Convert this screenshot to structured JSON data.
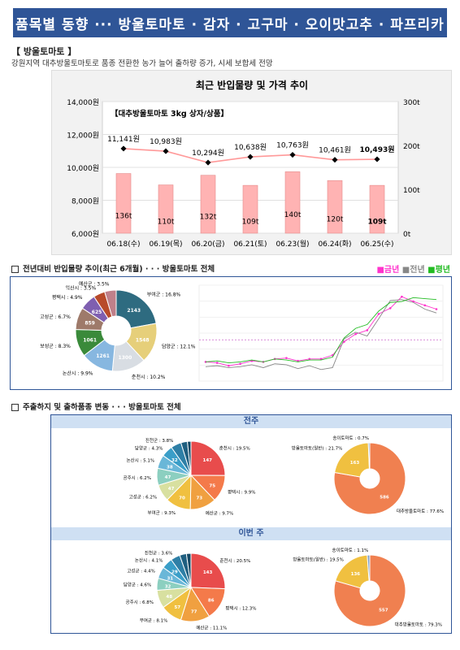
{
  "title": "품목별 동향 ··· 방울토마토 · 감자 · 고구마 · 오이맛고추 · 파프리카",
  "section1": {
    "heading": "【 방울토마토 】",
    "description": "강원지역 대추방울토마토로 품종 전환한 농가 늘어 출하량 증가, 시세 보합세 전망"
  },
  "chart_data": [
    {
      "type": "bar+line",
      "title": "최근 반입물량 및 가격 추이",
      "subtitle": "【대추방울토마토 3kg 상자/상품】",
      "categories": [
        "06.18(수)",
        "06.19(목)",
        "06.20(금)",
        "06.21(토)",
        "06.23(월)",
        "06.24(화)",
        "06.25(수)"
      ],
      "series": [
        {
          "name": "반입물량",
          "axis": "right",
          "unit": "t",
          "values": [
            136,
            110,
            132,
            109,
            140,
            120,
            109
          ],
          "labels": [
            "136t",
            "110t",
            "132t",
            "109t",
            "140t",
            "120t",
            "109t"
          ]
        },
        {
          "name": "가격",
          "axis": "left",
          "unit": "원",
          "values": [
            11141,
            10983,
            10294,
            10638,
            10763,
            10461,
            10493
          ],
          "labels": [
            "11,141원",
            "10,983원",
            "10,294원",
            "10,638원",
            "10,763원",
            "10,461원",
            "10,493원"
          ]
        }
      ],
      "y_left_ticks": [
        "14,000원",
        "12,000원",
        "10,000원",
        "8,000원",
        "6,000원"
      ],
      "y_left_range": [
        6000,
        14000
      ],
      "y_right_ticks": [
        "300t",
        "200t",
        "100t",
        "0t"
      ],
      "y_right_range": [
        0,
        300
      ],
      "colors": {
        "bar": "#ffb3b3",
        "bar_border": "#e58b8b",
        "line": "#ff9999",
        "marker": "#000000"
      }
    },
    {
      "type": "pie",
      "title": "전년대비 반입물량 추이(최근 6개월) · · · 방울토마토 전체",
      "slices": [
        {
          "label": "부여군 : 16.8%",
          "value": 2143,
          "color": "#2e6b80"
        },
        {
          "label": "담양군 : 12.1%",
          "value": 1548,
          "color": "#e6cf7a"
        },
        {
          "label": "춘천시 : 10.2%",
          "value": 1300,
          "color": "#d8dde3"
        },
        {
          "label": "논산시 : 9.9%",
          "value": 1261,
          "color": "#87b7e0"
        },
        {
          "label": "보성군 : 8.3%",
          "value": 1061,
          "color": "#3a8a3a"
        },
        {
          "label": "고성군 : 6.7%",
          "value": 859,
          "color": "#9e7a6a"
        },
        {
          "label": "평택시 : 4.9%",
          "value": 625,
          "color": "#7f5fb0"
        },
        {
          "label": "익산시 : 3.5%",
          "value": 446,
          "color": "#b84a2a"
        },
        {
          "label": "예산군 : 3.5%",
          "value": 446,
          "color": "#c0808a"
        }
      ]
    },
    {
      "type": "line",
      "title": "전년대비 반입물량 추이(최근 6개월)",
      "legend": [
        "금년",
        "전년",
        "평년"
      ],
      "series": [
        {
          "name": "금년",
          "color": "#ff33cc",
          "values": [
            40,
            38,
            32,
            36,
            42,
            40,
            46,
            48,
            42,
            46,
            46,
            54,
            82,
            98,
            106,
            140,
            152,
            176,
            166,
            158,
            150
          ]
        },
        {
          "name": "전년",
          "color": "#888888",
          "values": [
            30,
            32,
            28,
            30,
            34,
            28,
            36,
            34,
            26,
            32,
            24,
            28,
            88,
            102,
            94,
            130,
            168,
            170,
            164,
            150,
            142
          ]
        },
        {
          "name": "평년",
          "color": "#22bb22",
          "values": [
            40,
            42,
            38,
            40,
            44,
            40,
            46,
            44,
            40,
            44,
            44,
            50,
            90,
            110,
            118,
            146,
            164,
            166,
            174,
            172,
            170
          ]
        }
      ],
      "reference": 86
    },
    {
      "type": "pie",
      "title": "전주",
      "slices": [
        {
          "label": "춘천시 : 19.5%",
          "value": 147,
          "color": "#e84c4c"
        },
        {
          "label": "평택시 : 9.9%",
          "value": 75,
          "color": "#f47a4a"
        },
        {
          "label": "예산군 : 9.7%",
          "value": 73,
          "color": "#f0a040"
        },
        {
          "label": "부여군 : 9.3%",
          "value": 70,
          "color": "#f0c040"
        },
        {
          "label": "고성군 : 6.2%",
          "value": 47,
          "color": "#d8e0a0"
        },
        {
          "label": "공주시 : 6.2%",
          "value": 47,
          "color": "#8ccfc0"
        },
        {
          "label": "논산시 : 5.1%",
          "value": 38,
          "color": "#6ab7d8"
        },
        {
          "label": "담양군 : 4.3%",
          "value": 32,
          "color": "#3a9ec8"
        },
        {
          "label": "진천군 : 3.8%",
          "value": 29,
          "color": "#2e7fa6"
        },
        {
          "label": "",
          "value": 18,
          "color": "#1f5f80"
        },
        {
          "label": "",
          "value": 10,
          "color": "#164a66"
        }
      ]
    },
    {
      "type": "donut",
      "title": "전주",
      "slices": [
        {
          "label": "대추방울토마토 : 77.6%",
          "value": 586,
          "color": "#f08050"
        },
        {
          "label": "방울토마토(일반) : 21.7%",
          "value": 163,
          "color": "#f0c040"
        },
        {
          "label": "송이토마토 : 0.7%",
          "value": 5,
          "color": "#7fa0c8"
        }
      ]
    },
    {
      "type": "pie",
      "title": "이번 주",
      "slices": [
        {
          "label": "춘천시 : 20.5%",
          "value": 143,
          "color": "#e84c4c"
        },
        {
          "label": "평택시 : 12.3%",
          "value": 86,
          "color": "#f47a4a"
        },
        {
          "label": "예산군 : 11.1%",
          "value": 77,
          "color": "#f0a040"
        },
        {
          "label": "부여군 : 8.1%",
          "value": 57,
          "color": "#f0c040"
        },
        {
          "label": "공주시 : 6.8%",
          "value": 48,
          "color": "#d8e0a0"
        },
        {
          "label": "담양군 : 4.6%",
          "value": 32,
          "color": "#8ccfc0"
        },
        {
          "label": "고성군 : 4.4%",
          "value": 31,
          "color": "#6ab7d8"
        },
        {
          "label": "논산시 : 4.1%",
          "value": 29,
          "color": "#3a9ec8"
        },
        {
          "label": "진천군 : 3.6%",
          "value": 25,
          "color": "#2e7fa6"
        },
        {
          "label": "",
          "value": 18,
          "color": "#1f5f80"
        },
        {
          "label": "",
          "value": 12,
          "color": "#164a66"
        }
      ]
    },
    {
      "type": "donut",
      "title": "이번 주",
      "slices": [
        {
          "label": "대추방울토마토 : 79.3%",
          "value": 557,
          "color": "#f08050"
        },
        {
          "label": "방울토마토(일반) : 19.5%",
          "value": 136,
          "color": "#f0c040"
        },
        {
          "label": "송이토마토 : 1.1%",
          "value": 8,
          "color": "#7fa0c8"
        }
      ]
    }
  ],
  "section2": {
    "heading": "전년대비 반입물량 추이(최근 6개월) · · · 방울토마토 전체",
    "legend": [
      "■금년",
      "■전년",
      "■평년"
    ],
    "legend_colors": [
      "#ff33cc",
      "#888888",
      "#22bb22"
    ]
  },
  "section3": {
    "heading": "주출하지 및 출하품종 변동 · · · 방울토마토 전체",
    "week_prev": "전주",
    "week_this": "이번 주"
  }
}
